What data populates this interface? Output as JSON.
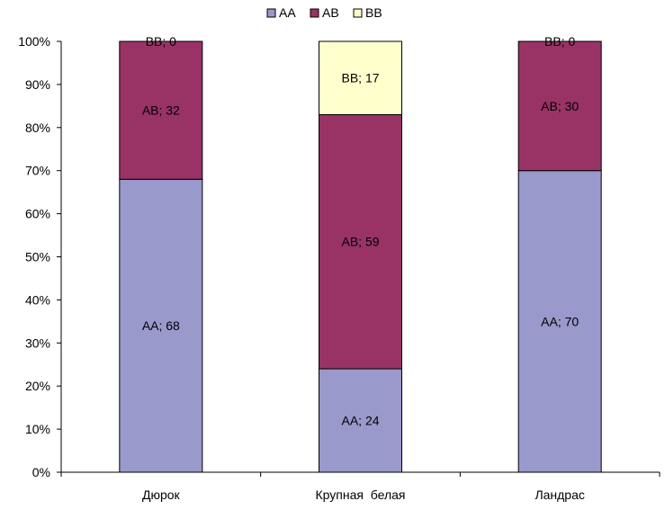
{
  "chart_data": {
    "type": "bar",
    "stacked": true,
    "percent": true,
    "categories": [
      "Дюрок",
      "Крупная  белая",
      "Ландрас"
    ],
    "series": [
      {
        "name": "AA",
        "color": "#9999cc",
        "values": [
          68,
          24,
          70
        ],
        "labels": [
          "AA; 68",
          "AA; 24",
          "AA; 70"
        ]
      },
      {
        "name": "AB",
        "color": "#993366",
        "values": [
          32,
          59,
          30
        ],
        "labels": [
          "AB; 32",
          "AB; 59",
          "AB; 30"
        ]
      },
      {
        "name": "BB",
        "color": "#ffffcc",
        "values": [
          0,
          17,
          0
        ],
        "labels": [
          "BB; 0",
          "BB; 17",
          "BB; 0"
        ]
      }
    ],
    "ylim": [
      0,
      100
    ],
    "yticks": [
      "0%",
      "10%",
      "20%",
      "30%",
      "40%",
      "50%",
      "60%",
      "70%",
      "80%",
      "90%",
      "100%"
    ],
    "legend_position": "top-center",
    "grid": false
  }
}
